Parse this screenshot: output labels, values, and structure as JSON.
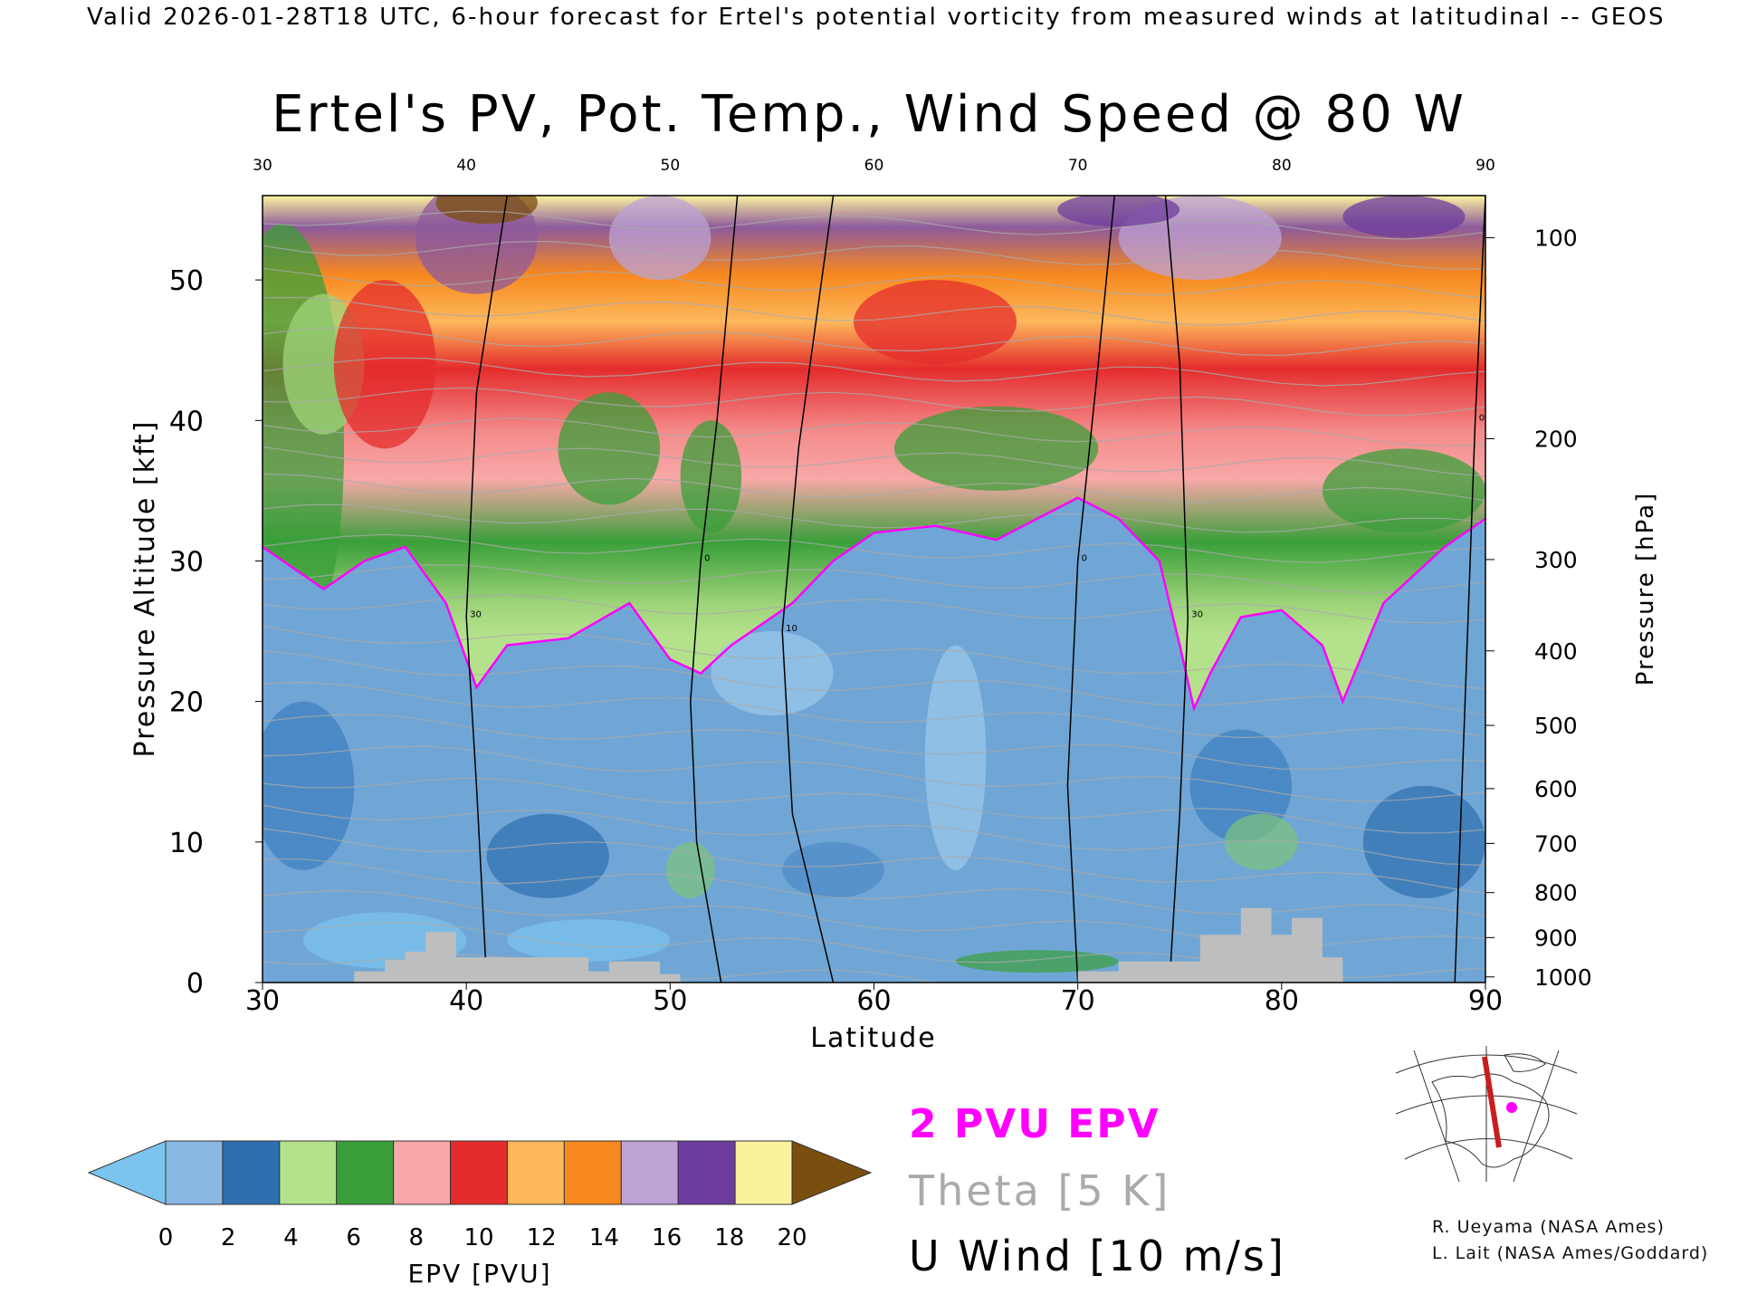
{
  "header": {
    "valid_line": "Valid 2026-01-28T18 UTC, 6-hour forecast for Ertel's potential vorticity from measured winds at latitudinal -- GEOS"
  },
  "legend": {
    "pvu_label": "2 PVU EPV",
    "theta_label": "Theta [5 K]",
    "wind_label": "U Wind [10 m/s]"
  },
  "credits": {
    "line1": "R. Ueyama (NASA Ames)",
    "line2": "L. Lait (NASA Ames/Goddard)"
  },
  "colors": {
    "pvu_contour": "#ff00ff",
    "theta_contour": "#aaaaaa",
    "wind_contour": "#000000",
    "terrain": "#bebebe",
    "section_line": "#c81e1e",
    "marker": "#ff00ff"
  },
  "chart_data": {
    "type": "heatmap",
    "title": "Ertel's PV, Pot. Temp., Wind Speed @ 80 W",
    "xlabel": "Latitude",
    "ylabel": "Pressure Altitude [kft]",
    "y2label": "Pressure [hPa]",
    "xlim": [
      30,
      90
    ],
    "ylim": [
      0,
      56
    ],
    "x_ticks": [
      30,
      40,
      50,
      60,
      70,
      80,
      90
    ],
    "y_ticks": [
      0,
      10,
      20,
      30,
      40,
      50
    ],
    "pressure_ticks": [
      {
        "label": "100",
        "kft": 53.0
      },
      {
        "label": "200",
        "kft": 38.7
      },
      {
        "label": "300",
        "kft": 30.1
      },
      {
        "label": "400",
        "kft": 23.6
      },
      {
        "label": "500",
        "kft": 18.3
      },
      {
        "label": "600",
        "kft": 13.8
      },
      {
        "label": "700",
        "kft": 9.9
      },
      {
        "label": "800",
        "kft": 6.4
      },
      {
        "label": "900",
        "kft": 3.2
      },
      {
        "label": "1000",
        "kft": 0.4
      }
    ],
    "colorbar": {
      "label": "EPV [PVU]",
      "ticks": [
        0,
        2,
        4,
        6,
        8,
        10,
        12,
        14,
        16,
        18,
        20
      ],
      "colors": [
        "#8ab8e4",
        "#2e6fae",
        "#b4e28c",
        "#3a9f3a",
        "#f8a8a8",
        "#e42c2c",
        "#fdb85c",
        "#f7881e",
        "#bea2d6",
        "#6c3c9e",
        "#fbf29e"
      ],
      "under_color": "#7cc4f0",
      "over_color": "#7a4e0e"
    },
    "tropopause_2pvu": [
      [
        30,
        31
      ],
      [
        33,
        28
      ],
      [
        35,
        30
      ],
      [
        37,
        31
      ],
      [
        39,
        27
      ],
      [
        40.5,
        21
      ],
      [
        42,
        24
      ],
      [
        45,
        24.5
      ],
      [
        48,
        27
      ],
      [
        50,
        23
      ],
      [
        51.5,
        22
      ],
      [
        53,
        24
      ],
      [
        56,
        27
      ],
      [
        58,
        30
      ],
      [
        60,
        32
      ],
      [
        63,
        32.5
      ],
      [
        66,
        31.5
      ],
      [
        68,
        33
      ],
      [
        70,
        34.5
      ],
      [
        72,
        33
      ],
      [
        74,
        30
      ],
      [
        75,
        24
      ],
      [
        75.7,
        19.5
      ],
      [
        76.5,
        22
      ],
      [
        78,
        26
      ],
      [
        80,
        26.5
      ],
      [
        82,
        24
      ],
      [
        83,
        20
      ],
      [
        85,
        27
      ],
      [
        88,
        31
      ],
      [
        90,
        33
      ]
    ],
    "wind_contours": [
      {
        "label": "0",
        "points": [
          [
            52.5,
            0
          ],
          [
            51.3,
            10
          ],
          [
            51,
            20
          ],
          [
            51.5,
            30
          ],
          [
            52.3,
            40
          ],
          [
            53.3,
            56
          ]
        ]
      },
      {
        "label": "10",
        "points": [
          [
            58,
            0
          ],
          [
            56,
            12
          ],
          [
            55.5,
            25
          ],
          [
            56.3,
            38
          ],
          [
            58,
            56
          ]
        ]
      },
      {
        "label": "30",
        "points": [
          [
            41,
            0
          ],
          [
            40.5,
            14
          ],
          [
            40,
            26
          ],
          [
            40.5,
            42
          ],
          [
            42,
            56
          ]
        ]
      },
      {
        "label": "0",
        "points": [
          [
            70,
            0
          ],
          [
            69.5,
            14
          ],
          [
            70,
            30
          ],
          [
            71,
            44
          ],
          [
            71.8,
            56
          ]
        ]
      },
      {
        "label": "30",
        "points": [
          [
            74.5,
            0
          ],
          [
            75,
            12
          ],
          [
            75.4,
            26
          ],
          [
            75,
            44
          ],
          [
            74.3,
            56
          ]
        ]
      },
      {
        "label": "0",
        "points": [
          [
            88.5,
            0
          ],
          [
            89,
            20
          ],
          [
            89.5,
            40
          ],
          [
            90,
            56
          ]
        ]
      }
    ],
    "terrain_kft": [
      [
        30,
        0
      ],
      [
        34.5,
        0
      ],
      [
        34.5,
        0.8
      ],
      [
        36,
        0.8
      ],
      [
        36,
        1.6
      ],
      [
        37,
        1.6
      ],
      [
        37,
        2.2
      ],
      [
        38,
        2.2
      ],
      [
        38,
        3.6
      ],
      [
        39.5,
        3.6
      ],
      [
        39.5,
        1.8
      ],
      [
        46,
        1.8
      ],
      [
        46,
        0.8
      ],
      [
        47,
        0.8
      ],
      [
        47,
        1.5
      ],
      [
        49.5,
        1.5
      ],
      [
        49.5,
        0.6
      ],
      [
        50.5,
        0.6
      ],
      [
        50.5,
        0
      ],
      [
        70,
        0
      ],
      [
        70,
        0.8
      ],
      [
        72,
        0.8
      ],
      [
        72,
        1.5
      ],
      [
        76,
        1.5
      ],
      [
        76,
        3.4
      ],
      [
        78,
        3.4
      ],
      [
        78,
        5.3
      ],
      [
        79.5,
        5.3
      ],
      [
        79.5,
        3.4
      ],
      [
        80.5,
        3.4
      ],
      [
        80.5,
        4.6
      ],
      [
        82,
        4.6
      ],
      [
        82,
        1.8
      ],
      [
        83,
        1.8
      ],
      [
        83,
        0
      ],
      [
        90,
        0
      ]
    ]
  }
}
